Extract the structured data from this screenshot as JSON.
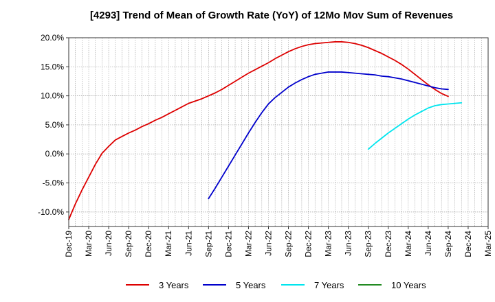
{
  "chart_data": {
    "type": "line",
    "title": "[4293]  Trend of Mean of Growth Rate (YoY) of 12Mo Mov Sum of Revenues",
    "xlabel": "",
    "ylabel": "",
    "ylim": [
      -0.125,
      0.2
    ],
    "y_ticks": [
      {
        "value": 0.2,
        "label": "20.0%"
      },
      {
        "value": 0.15,
        "label": "15.0%"
      },
      {
        "value": 0.1,
        "label": "10.0%"
      },
      {
        "value": 0.05,
        "label": "5.0%"
      },
      {
        "value": 0.0,
        "label": "0.0%"
      },
      {
        "value": -0.05,
        "label": "-5.0%"
      },
      {
        "value": -0.1,
        "label": "-10.0%"
      }
    ],
    "x_ticks": [
      "Dec-19",
      "Mar-20",
      "Jun-20",
      "Sep-20",
      "Dec-20",
      "Mar-21",
      "Jun-21",
      "Sep-21",
      "Dec-21",
      "Mar-22",
      "Jun-22",
      "Sep-22",
      "Dec-22",
      "Mar-23",
      "Jun-23",
      "Sep-23",
      "Dec-23",
      "Mar-24",
      "Jun-24",
      "Sep-24",
      "Dec-24",
      "Mar-25"
    ],
    "grid": true,
    "legend_position": "bottom",
    "series": [
      {
        "name": "3 Years",
        "color": "#dd0000",
        "start_index": 0,
        "values": [
          -0.113,
          -0.086,
          -0.062,
          -0.04,
          -0.018,
          0.001,
          0.013,
          0.024,
          0.03,
          0.036,
          0.041,
          0.047,
          0.052,
          0.058,
          0.063,
          0.069,
          0.075,
          0.081,
          0.087,
          0.091,
          0.095,
          0.1,
          0.105,
          0.111,
          0.118,
          0.125,
          0.132,
          0.139,
          0.145,
          0.151,
          0.157,
          0.164,
          0.17,
          0.176,
          0.181,
          0.185,
          0.188,
          0.19,
          0.191,
          0.192,
          0.193,
          0.193,
          0.192,
          0.19,
          0.187,
          0.183,
          0.178,
          0.173,
          0.167,
          0.161,
          0.154,
          0.146,
          0.137,
          0.128,
          0.119,
          0.111,
          0.104,
          0.099
        ]
      },
      {
        "name": "5 Years",
        "color": "#0000cc",
        "start_index": 21,
        "values": [
          -0.077,
          -0.059,
          -0.04,
          -0.021,
          -0.002,
          0.017,
          0.036,
          0.054,
          0.071,
          0.086,
          0.097,
          0.106,
          0.115,
          0.122,
          0.128,
          0.133,
          0.137,
          0.139,
          0.141,
          0.141,
          0.141,
          0.14,
          0.139,
          0.138,
          0.137,
          0.136,
          0.134,
          0.133,
          0.131,
          0.129,
          0.126,
          0.123,
          0.12,
          0.117,
          0.114,
          0.112,
          0.111
        ]
      },
      {
        "name": "7 Years",
        "color": "#00e5ee",
        "start_index": 45,
        "values": [
          0.008,
          0.018,
          0.027,
          0.036,
          0.044,
          0.052,
          0.06,
          0.067,
          0.073,
          0.079,
          0.083,
          0.085,
          0.086,
          0.087,
          0.088
        ]
      },
      {
        "name": "10 Years",
        "color": "#228b22",
        "start_index": 0,
        "values": []
      }
    ]
  }
}
